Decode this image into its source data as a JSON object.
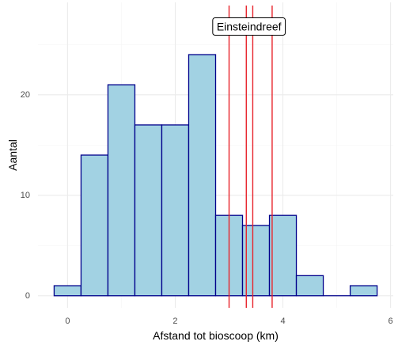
{
  "chart_data": {
    "type": "bar",
    "subtype": "histogram",
    "title": "",
    "xlabel": "Afstand tot bioscoop (km)",
    "ylabel": "Aantal",
    "bin_width": 0.5,
    "bins": [
      {
        "x0": -0.25,
        "x1": 0.25,
        "count": 1
      },
      {
        "x0": 0.25,
        "x1": 0.75,
        "count": 14
      },
      {
        "x0": 0.75,
        "x1": 1.25,
        "count": 21
      },
      {
        "x0": 1.25,
        "x1": 1.75,
        "count": 17
      },
      {
        "x0": 1.75,
        "x1": 2.25,
        "count": 17
      },
      {
        "x0": 2.25,
        "x1": 2.75,
        "count": 24
      },
      {
        "x0": 2.75,
        "x1": 3.25,
        "count": 8
      },
      {
        "x0": 3.25,
        "x1": 3.75,
        "count": 7
      },
      {
        "x0": 3.75,
        "x1": 4.25,
        "count": 8
      },
      {
        "x0": 4.25,
        "x1": 4.75,
        "count": 2
      },
      {
        "x0": 4.75,
        "x1": 5.25,
        "count": 0
      },
      {
        "x0": 5.25,
        "x1": 5.75,
        "count": 1
      }
    ],
    "xlim": [
      -0.55,
      6.05
    ],
    "ylim": [
      -1.2,
      29.2
    ],
    "x_ticks": [
      0,
      2,
      4,
      6
    ],
    "x_tick_labels": [
      "0",
      "2",
      "4",
      "6"
    ],
    "y_ticks": [
      0,
      10,
      20
    ],
    "y_tick_labels": [
      "0",
      "10",
      "20"
    ],
    "grid": true,
    "reference_lines": [
      3.0,
      3.32,
      3.44,
      3.8
    ],
    "annotation": {
      "label": "Einsteindreef",
      "x": 3.37,
      "y": 26.8
    },
    "colors": {
      "bar_fill": "#a2d2e3",
      "bar_stroke": "#00008b",
      "reference_line": "#e8232b",
      "grid_major": "#ebebeb",
      "grid_minor": "#f5f5f5"
    }
  }
}
